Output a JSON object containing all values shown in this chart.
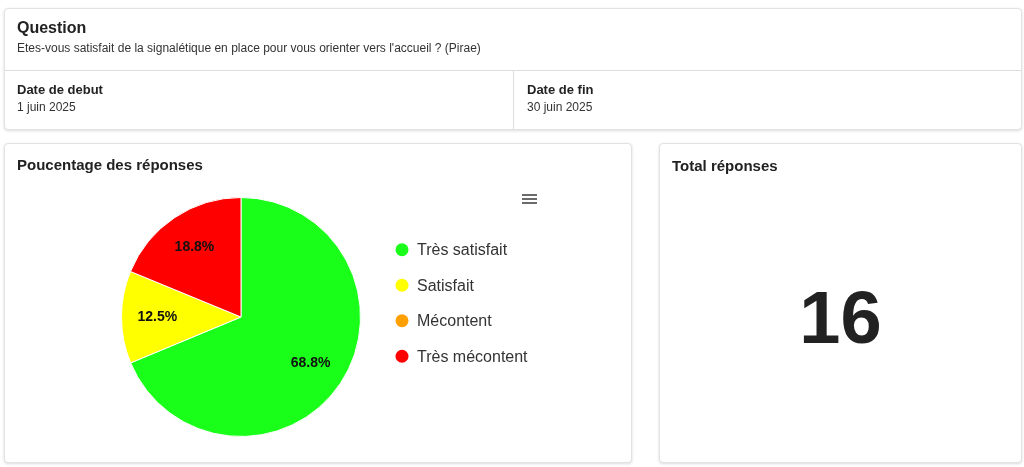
{
  "chart_data": [
    {
      "type": "other",
      "title": "Question",
      "subtitle": "Etes-vous satisfait de la signalétique en place pour vous orienter vers l'accueil ? (Pirae)",
      "annotations": [
        "Date de debut",
        "1 juin 2025",
        "Date de fin",
        "30 juin 2025"
      ]
    },
    {
      "type": "pie",
      "title": "Poucentage des réponses",
      "categories": [
        "Très satisfait",
        "Satisfait",
        "Mécontent",
        "Très mécontent"
      ],
      "values": [
        68.8,
        12.5,
        0,
        18.8
      ],
      "colors": [
        "#1aff1a",
        "#ffff00",
        "#ffa000",
        "#ff0000"
      ],
      "value_labels": [
        "68.8%",
        "12.5%",
        null,
        "18.8%"
      ],
      "legend": "right"
    },
    {
      "type": "other",
      "title": "Total réponses",
      "annotations": [
        "16"
      ]
    }
  ]
}
